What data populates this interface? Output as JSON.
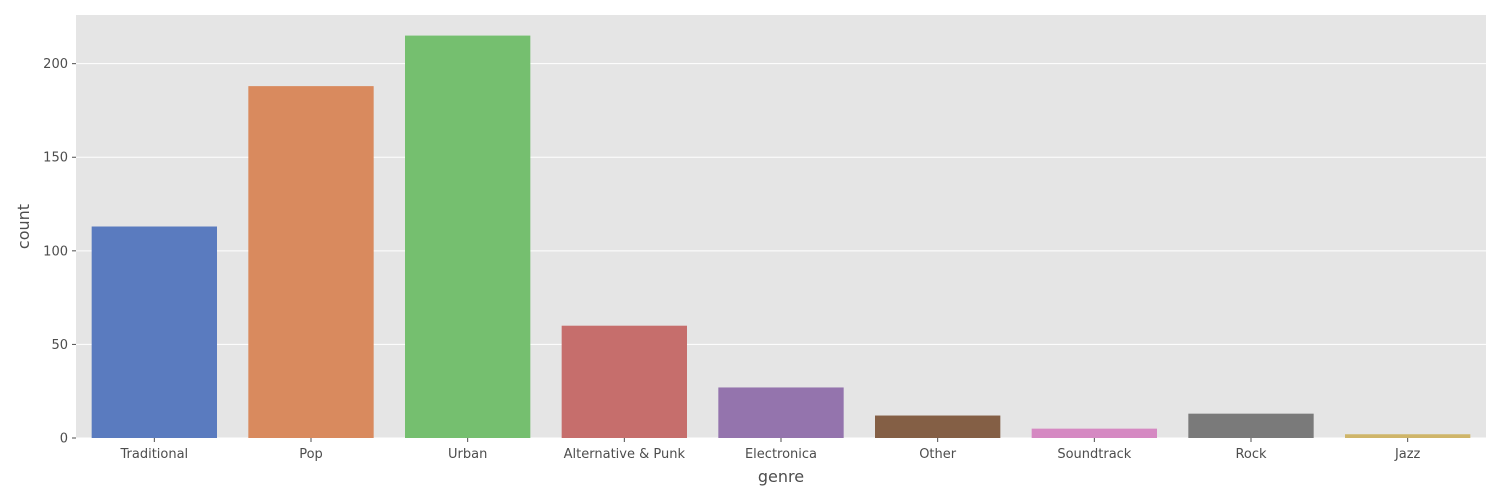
{
  "chart_data": {
    "type": "bar",
    "xlabel": "genre",
    "ylabel": "count",
    "categories": [
      "Traditional",
      "Pop",
      "Urban",
      "Alternative & Punk",
      "Electronica",
      "Other",
      "Soundtrack",
      "Rock",
      "Jazz"
    ],
    "values": [
      113,
      188,
      215,
      60,
      27,
      12,
      5,
      13,
      2
    ],
    "colors": [
      "#5a7bbf",
      "#d98a5e",
      "#75bf6f",
      "#c66e6c",
      "#9474ad",
      "#845f45",
      "#d589c2",
      "#7a7a7a",
      "#cfb569"
    ],
    "ylim": [
      0,
      226
    ],
    "yticks": [
      0,
      50,
      100,
      150,
      200
    ],
    "grid": true,
    "legend": "none",
    "background": "#e5e5e5",
    "grid_color": "#ffffff"
  }
}
